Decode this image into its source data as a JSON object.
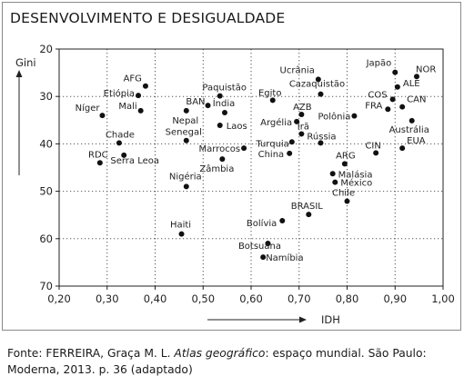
{
  "title": "DESENVOLVIMENTO E DESIGUALDADE",
  "source": {
    "prefix": "Fonte: FERREIRA, Graça M. L. ",
    "book": "Atlas geográfico",
    "suffix": ": espaço mundial. São Paulo: Moderna, 2013. p. 36 (adaptado)"
  },
  "chart_data": {
    "type": "scatter",
    "xlabel": "IDH",
    "ylabel": "Gini",
    "xlim": [
      0.2,
      1.0
    ],
    "ylim": [
      20,
      70
    ],
    "y_inverted": true,
    "grid": "dotted",
    "x_ticks": [
      "0,20",
      "0,30",
      "0,40",
      "0,50",
      "0,60",
      "0,70",
      "0,80",
      "0,90",
      "1,00"
    ],
    "y_ticks": [
      "20",
      "30",
      "40",
      "50",
      "60",
      "70"
    ],
    "points": [
      {
        "label": "Japão",
        "x": 0.9,
        "y": 24.9
      },
      {
        "label": "NOR",
        "x": 0.945,
        "y": 25.8
      },
      {
        "label": "Ucrânia",
        "x": 0.74,
        "y": 26.4
      },
      {
        "label": "ALE",
        "x": 0.905,
        "y": 28.0
      },
      {
        "label": "AFG",
        "x": 0.38,
        "y": 27.8
      },
      {
        "label": "Etiópia",
        "x": 0.365,
        "y": 29.8
      },
      {
        "label": "Paquistão",
        "x": 0.535,
        "y": 29.9
      },
      {
        "label": "Egito",
        "x": 0.645,
        "y": 30.8
      },
      {
        "label": "Cazaquistão",
        "x": 0.745,
        "y": 29.5
      },
      {
        "label": "COS",
        "x": 0.895,
        "y": 30.6
      },
      {
        "label": "CAN",
        "x": 0.915,
        "y": 32.2
      },
      {
        "label": "Mali",
        "x": 0.37,
        "y": 33.0
      },
      {
        "label": "BAN",
        "x": 0.51,
        "y": 31.9
      },
      {
        "label": "Índia",
        "x": 0.545,
        "y": 33.4
      },
      {
        "label": "Nepal",
        "x": 0.465,
        "y": 33.0
      },
      {
        "label": "Níger",
        "x": 0.29,
        "y": 34.0
      },
      {
        "label": "AZB",
        "x": 0.705,
        "y": 33.8
      },
      {
        "label": "Argélia",
        "x": 0.695,
        "y": 35.3
      },
      {
        "label": "Polônia",
        "x": 0.815,
        "y": 34.1
      },
      {
        "label": "FRA",
        "x": 0.885,
        "y": 32.7
      },
      {
        "label": "Austrália",
        "x": 0.935,
        "y": 35.1
      },
      {
        "label": "Laos",
        "x": 0.535,
        "y": 36.1
      },
      {
        "label": "Irã",
        "x": 0.705,
        "y": 37.9
      },
      {
        "label": "Senegal",
        "x": 0.465,
        "y": 39.3
      },
      {
        "label": "Chade",
        "x": 0.325,
        "y": 39.8
      },
      {
        "label": "Rússia",
        "x": 0.745,
        "y": 39.8
      },
      {
        "label": "Turquia",
        "x": 0.685,
        "y": 39.6
      },
      {
        "label": "CIN",
        "x": 0.86,
        "y": 41.9
      },
      {
        "label": "EUA",
        "x": 0.915,
        "y": 40.9
      },
      {
        "label": "Marrocos",
        "x": 0.585,
        "y": 40.9
      },
      {
        "label": "China",
        "x": 0.68,
        "y": 42.0
      },
      {
        "label": "RDC",
        "x": 0.285,
        "y": 44.0
      },
      {
        "label": "Serra Leoa",
        "x": 0.335,
        "y": 42.4
      },
      {
        "label": "Zâmbia",
        "x": 0.54,
        "y": 43.2
      },
      {
        "label": "ARG",
        "x": 0.795,
        "y": 44.2
      },
      {
        "label": "Malásia",
        "x": 0.77,
        "y": 46.3
      },
      {
        "label": "México",
        "x": 0.775,
        "y": 48.1
      },
      {
        "label": "Nigéria",
        "x": 0.465,
        "y": 49.0
      },
      {
        "label": "Chile",
        "x": 0.8,
        "y": 52.1
      },
      {
        "label": "BRASIL",
        "x": 0.72,
        "y": 54.9
      },
      {
        "label": "Bolívia",
        "x": 0.665,
        "y": 56.2
      },
      {
        "label": "Haiti",
        "x": 0.455,
        "y": 59.0
      },
      {
        "label": "Botsuana",
        "x": 0.635,
        "y": 61.0
      },
      {
        "label": "Namíbia",
        "x": 0.625,
        "y": 63.9
      }
    ]
  }
}
